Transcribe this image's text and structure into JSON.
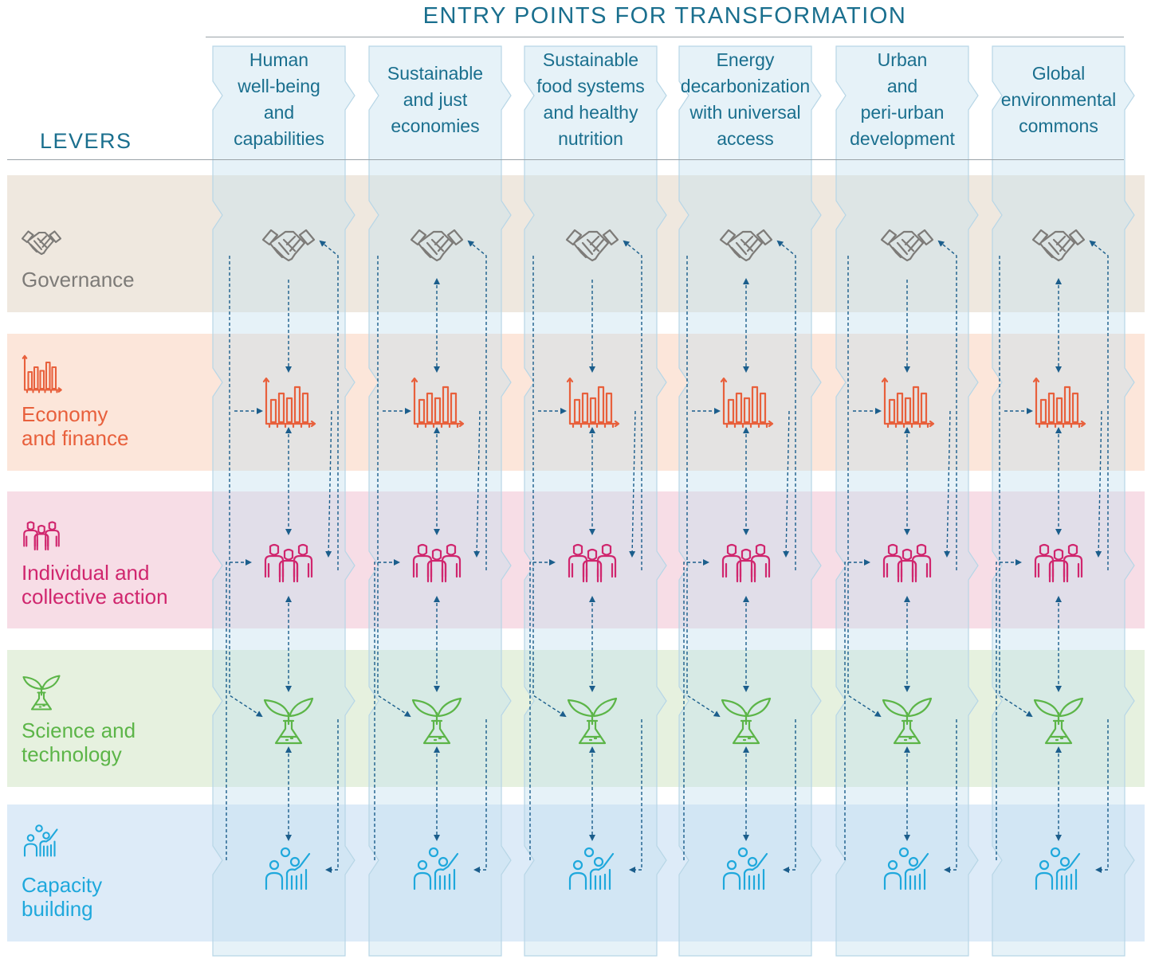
{
  "header": {
    "entry_points_title": "ENTRY POINTS FOR TRANSFORMATION",
    "levers_title": "LEVERS"
  },
  "entry_points": [
    {
      "lines": [
        "Human",
        "well-being",
        "and",
        "capabilities"
      ]
    },
    {
      "lines": [
        "Sustainable",
        "and just",
        "economies"
      ]
    },
    {
      "lines": [
        "Sustainable",
        "food systems",
        "and healthy",
        "nutrition"
      ]
    },
    {
      "lines": [
        "Energy",
        "decarbonization",
        "with universal",
        "access"
      ]
    },
    {
      "lines": [
        "Urban",
        "and",
        "peri-urban",
        "development"
      ]
    },
    {
      "lines": [
        "Global",
        "environmental",
        "commons"
      ]
    }
  ],
  "levers": [
    {
      "lines": [
        "Governance"
      ],
      "icon": "handshake-icon",
      "color": "#7d7b78",
      "band_color": "#efe8df"
    },
    {
      "lines": [
        "Economy",
        "and finance"
      ],
      "icon": "bar-chart-icon",
      "color": "#e8603c",
      "band_color": "#fce6da"
    },
    {
      "lines": [
        "Individual and",
        "collective action"
      ],
      "icon": "people-group-icon",
      "color": "#d0266e",
      "band_color": "#f7dde6"
    },
    {
      "lines": [
        "Science and",
        "technology"
      ],
      "icon": "plant-flask-icon",
      "color": "#5cb548",
      "band_color": "#e6f1df"
    },
    {
      "lines": [
        "Capacity",
        "building"
      ],
      "icon": "teacher-icon",
      "color": "#1fa8dc",
      "band_color": "#ddebf8"
    }
  ],
  "colors": {
    "title_text": "#1a6f8e",
    "column_fill": "#c4e0ef",
    "arrow": "#1b5e8c",
    "rule": "#9aa3a8"
  }
}
